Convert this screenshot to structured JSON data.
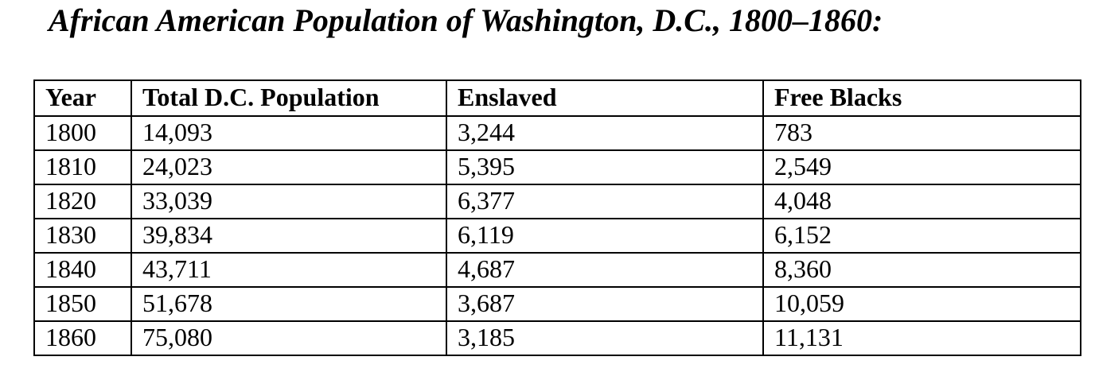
{
  "document": {
    "title": "African American Population of Washington, D.C., 1800–1860:"
  },
  "table": {
    "headers": [
      "Year",
      "Total D.C. Population",
      "Enslaved",
      "Free Blacks"
    ],
    "rows": [
      [
        "1800",
        "14,093",
        "3,244",
        "783"
      ],
      [
        "1810",
        "24,023",
        "5,395",
        "2,549"
      ],
      [
        "1820",
        "33,039",
        "6,377",
        "4,048"
      ],
      [
        "1830",
        "39,834",
        "6,119",
        "6,152"
      ],
      [
        "1840",
        "43,711",
        "4,687",
        "8,360"
      ],
      [
        "1850",
        "51,678",
        "3,687",
        "10,059"
      ],
      [
        "1860",
        "75,080",
        "3,185",
        "11,131"
      ]
    ]
  }
}
